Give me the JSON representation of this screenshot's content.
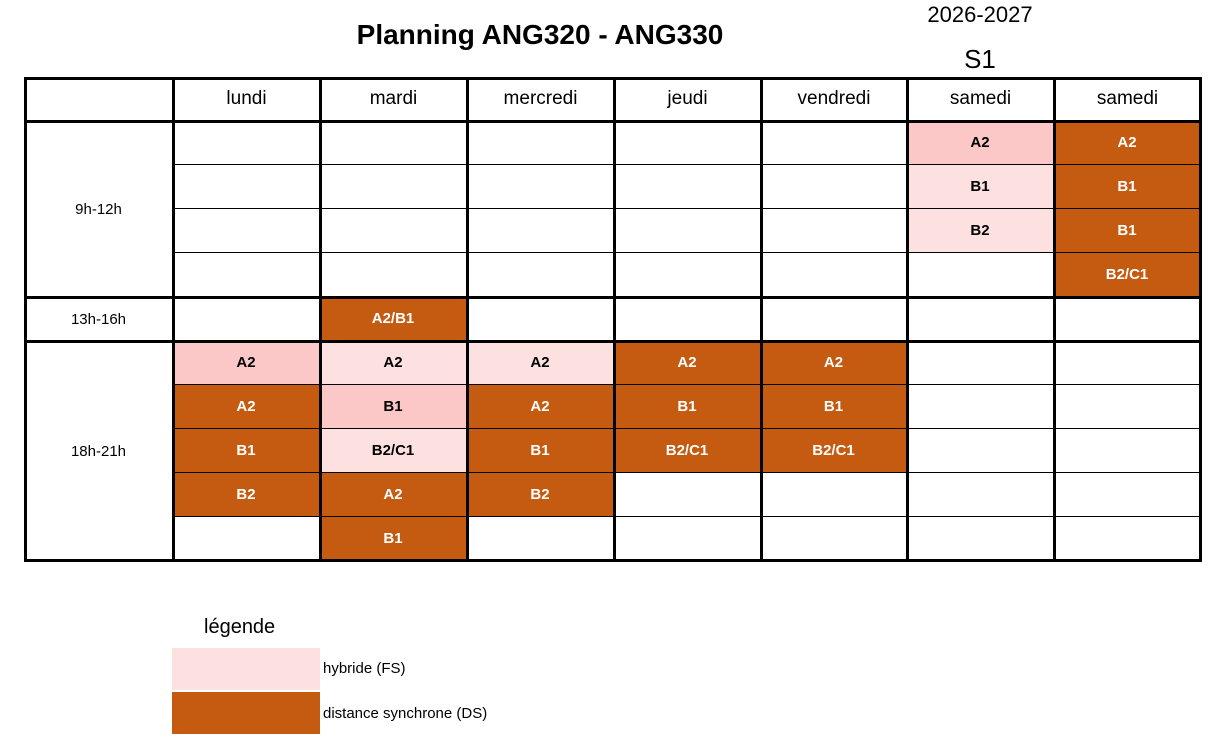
{
  "title": "Planning ANG320 - ANG330",
  "year": "2026-2027",
  "semester": "S1",
  "colors": {
    "hybride": "#fde1e1",
    "hybride_medium": "#fbc7c7",
    "distance": "#c55a11",
    "border": "#000000"
  },
  "days": [
    "lundi",
    "mardi",
    "mercredi",
    "jeudi",
    "vendredi",
    "samedi",
    "samedi"
  ],
  "time_slots": [
    "9h-12h",
    "13h-16h",
    "18h-21h"
  ],
  "sessions": [
    {
      "day": 5,
      "row": 0,
      "level": "A2",
      "mode": "hybride_medium"
    },
    {
      "day": 5,
      "row": 1,
      "level": "B1",
      "mode": "hybride"
    },
    {
      "day": 5,
      "row": 2,
      "level": "B2",
      "mode": "hybride"
    },
    {
      "day": 6,
      "row": 0,
      "level": "A2",
      "mode": "distance"
    },
    {
      "day": 6,
      "row": 1,
      "level": "B1",
      "mode": "distance"
    },
    {
      "day": 6,
      "row": 2,
      "level": "B1",
      "mode": "distance"
    },
    {
      "day": 6,
      "row": 3,
      "level": "B2/C1",
      "mode": "distance"
    },
    {
      "day": 1,
      "row": 4,
      "level": "A2/B1",
      "mode": "distance"
    },
    {
      "day": 0,
      "row": 5,
      "level": "A2",
      "mode": "hybride_medium"
    },
    {
      "day": 0,
      "row": 6,
      "level": "A2",
      "mode": "distance"
    },
    {
      "day": 0,
      "row": 7,
      "level": "B1",
      "mode": "distance"
    },
    {
      "day": 0,
      "row": 8,
      "level": "B2",
      "mode": "distance"
    },
    {
      "day": 1,
      "row": 5,
      "level": "A2",
      "mode": "hybride"
    },
    {
      "day": 1,
      "row": 6,
      "level": "B1",
      "mode": "hybride_medium"
    },
    {
      "day": 1,
      "row": 7,
      "level": "B2/C1",
      "mode": "hybride"
    },
    {
      "day": 1,
      "row": 8,
      "level": "A2",
      "mode": "distance"
    },
    {
      "day": 1,
      "row": 9,
      "level": "B1",
      "mode": "distance"
    },
    {
      "day": 2,
      "row": 5,
      "level": "A2",
      "mode": "hybride"
    },
    {
      "day": 2,
      "row": 6,
      "level": "A2",
      "mode": "distance"
    },
    {
      "day": 2,
      "row": 7,
      "level": "B1",
      "mode": "distance"
    },
    {
      "day": 2,
      "row": 8,
      "level": "B2",
      "mode": "distance"
    },
    {
      "day": 3,
      "row": 5,
      "level": "A2",
      "mode": "distance"
    },
    {
      "day": 3,
      "row": 6,
      "level": "B1",
      "mode": "distance"
    },
    {
      "day": 3,
      "row": 7,
      "level": "B2/C1",
      "mode": "distance"
    },
    {
      "day": 4,
      "row": 5,
      "level": "A2",
      "mode": "distance"
    },
    {
      "day": 4,
      "row": 6,
      "level": "B1",
      "mode": "distance"
    },
    {
      "day": 4,
      "row": 7,
      "level": "B2/C1",
      "mode": "distance"
    }
  ],
  "legend": {
    "title": "légende",
    "items": [
      {
        "label": "hybride (FS)",
        "mode": "hybride"
      },
      {
        "label": "distance synchrone (DS)",
        "mode": "distance"
      }
    ]
  }
}
